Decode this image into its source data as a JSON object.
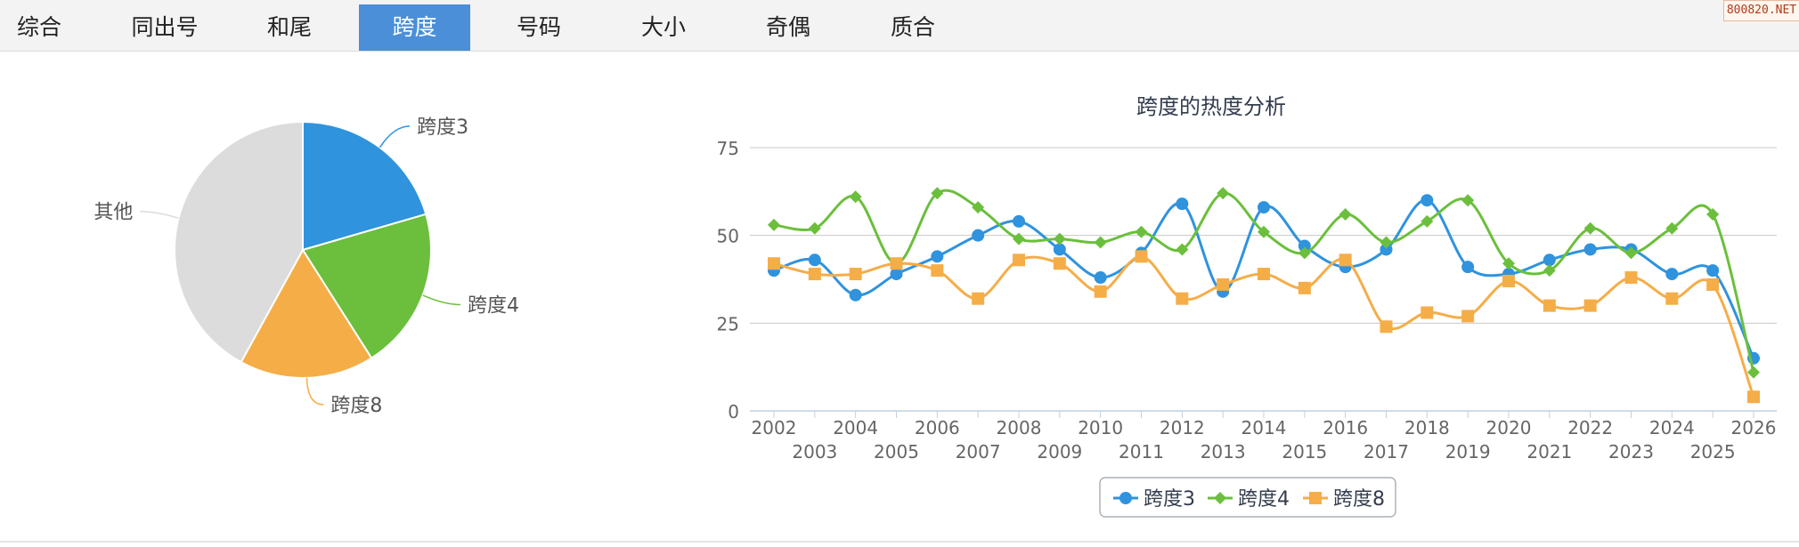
{
  "tabs": [
    {
      "label": "综合",
      "active": false
    },
    {
      "label": "同出号",
      "active": false
    },
    {
      "label": "和尾",
      "active": false
    },
    {
      "label": "跨度",
      "active": true
    },
    {
      "label": "号码",
      "active": false
    },
    {
      "label": "大小",
      "active": false
    },
    {
      "label": "奇偶",
      "active": false
    },
    {
      "label": "质合",
      "active": false
    }
  ],
  "watermark": "800820.NET",
  "chart_data": [
    {
      "type": "pie",
      "slices": [
        {
          "label": "跨度3",
          "value": 20.5,
          "color": "#2f93de"
        },
        {
          "label": "跨度4",
          "value": 20.5,
          "color": "#6bbf3c"
        },
        {
          "label": "跨度8",
          "value": 17.0,
          "color": "#f5ad48"
        },
        {
          "label": "其他",
          "value": 42.0,
          "color": "#dcdcdc"
        }
      ]
    },
    {
      "type": "line",
      "title": "跨度的热度分析",
      "x": [
        "2002",
        "2003",
        "2004",
        "2005",
        "2006",
        "2007",
        "2008",
        "2009",
        "2010",
        "2011",
        "2012",
        "2013",
        "2014",
        "2015",
        "2016",
        "2017",
        "2018",
        "2019",
        "2020",
        "2021",
        "2022",
        "2023",
        "2024",
        "2025",
        "2026"
      ],
      "ylim": [
        0,
        75
      ],
      "yticks": [
        0,
        25,
        50,
        75
      ],
      "grid": true,
      "legend": "bottom-center",
      "series": [
        {
          "name": "跨度3",
          "color": "#2f93de",
          "marker": "circle",
          "values": [
            40,
            43,
            33,
            39,
            44,
            50,
            54,
            46,
            38,
            45,
            59,
            34,
            58,
            47,
            41,
            46,
            60,
            41,
            39,
            43,
            46,
            46,
            39,
            40,
            15
          ]
        },
        {
          "name": "跨度4",
          "color": "#6bbf3c",
          "marker": "diamond",
          "values": [
            53,
            52,
            61,
            42,
            62,
            58,
            49,
            49,
            48,
            51,
            46,
            62,
            51,
            45,
            56,
            48,
            54,
            60,
            42,
            40,
            52,
            45,
            52,
            56,
            11
          ]
        },
        {
          "name": "跨度8",
          "color": "#f5ad48",
          "marker": "square",
          "values": [
            42,
            39,
            39,
            42,
            40,
            32,
            43,
            42,
            34,
            44,
            32,
            36,
            39,
            35,
            43,
            24,
            28,
            27,
            37,
            30,
            30,
            38,
            32,
            36,
            4
          ]
        }
      ]
    }
  ]
}
